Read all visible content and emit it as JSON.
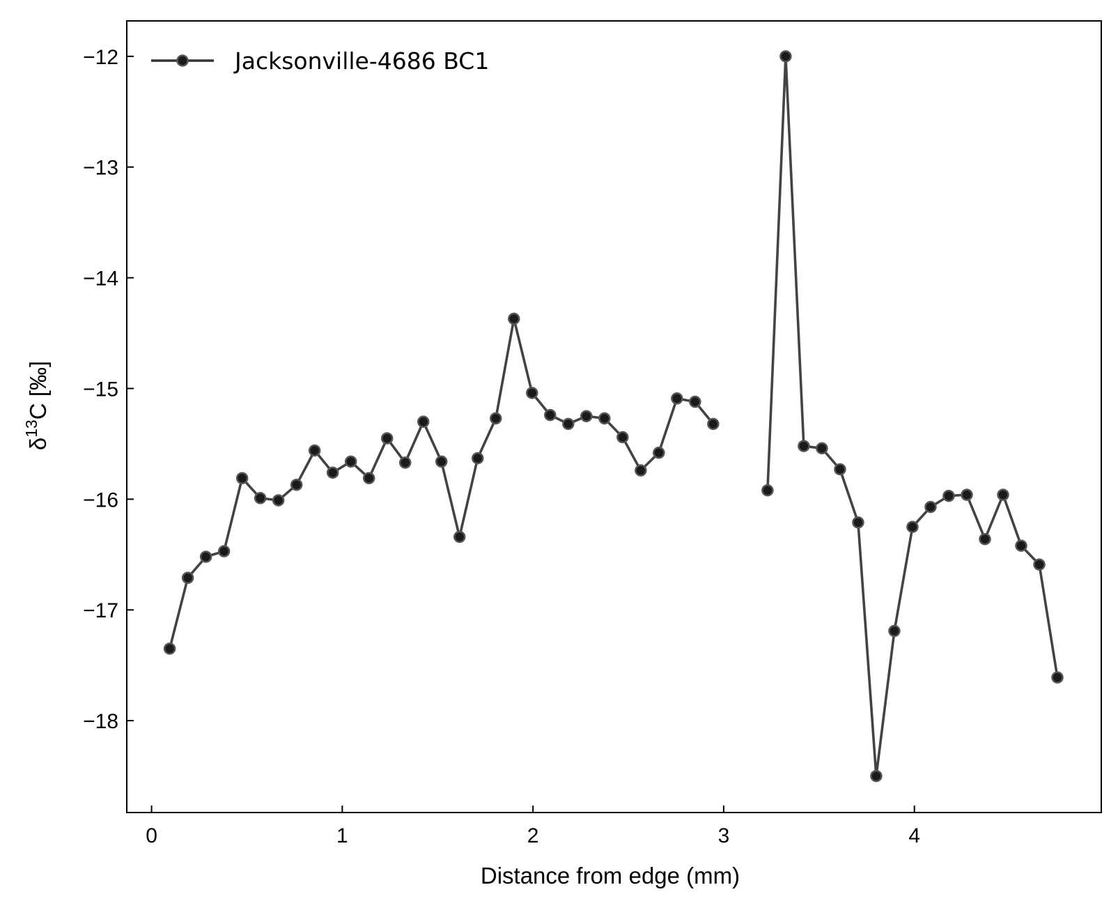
{
  "chart_data": {
    "type": "line",
    "title": "",
    "xlabel": "Distance from edge (mm)",
    "ylabel": {
      "prefix": "δ",
      "superscript": "13",
      "suffix": "C [‰]"
    },
    "xlim": [
      -0.13,
      4.98
    ],
    "ylim": [
      -18.83,
      -11.68
    ],
    "x_ticks": [
      0,
      1,
      2,
      3,
      4
    ],
    "y_ticks": [
      -12,
      -13,
      -14,
      -15,
      -16,
      -17,
      -18
    ],
    "x_tick_labels": [
      "0",
      "1",
      "2",
      "3",
      "4"
    ],
    "y_tick_labels": [
      "−12",
      "−13",
      "−14",
      "−15",
      "−16",
      "−17",
      "−18"
    ],
    "grid": false,
    "legend_position": "top-left",
    "series": [
      {
        "name": "Jacksonville-4686 BC1",
        "color": "#333333",
        "marker": "circle",
        "segments": [
          {
            "x": [
              0.095,
              0.19,
              0.285,
              0.38,
              0.475,
              0.57,
              0.665,
              0.76,
              0.855,
              0.95,
              1.045,
              1.14,
              1.235,
              1.33,
              1.425,
              1.52,
              1.615,
              1.71,
              1.805,
              1.9,
              1.995,
              2.09,
              2.185,
              2.28,
              2.375,
              2.47,
              2.565,
              2.66,
              2.755,
              2.85,
              2.945
            ],
            "y": [
              -17.35,
              -16.71,
              -16.52,
              -16.47,
              -15.81,
              -15.99,
              -16.01,
              -15.87,
              -15.56,
              -15.76,
              -15.66,
              -15.81,
              -15.45,
              -15.67,
              -15.3,
              -15.66,
              -16.34,
              -15.63,
              -15.27,
              -14.37,
              -15.04,
              -15.24,
              -15.32,
              -15.25,
              -15.27,
              -15.44,
              -15.74,
              -15.58,
              -15.09,
              -15.12,
              -15.32
            ]
          },
          {
            "x": [
              3.23,
              3.325,
              3.42,
              3.515,
              3.61,
              3.705,
              3.8,
              3.895,
              3.99,
              4.085,
              4.18,
              4.275,
              4.37,
              4.465,
              4.56,
              4.655,
              4.75
            ],
            "y": [
              -15.92,
              -12.0,
              -15.52,
              -15.54,
              -15.73,
              -16.21,
              -18.5,
              -17.19,
              -16.25,
              -16.07,
              -15.97,
              -15.96,
              -16.36,
              -15.96,
              -16.42,
              -16.59,
              -17.61
            ]
          }
        ]
      }
    ]
  }
}
